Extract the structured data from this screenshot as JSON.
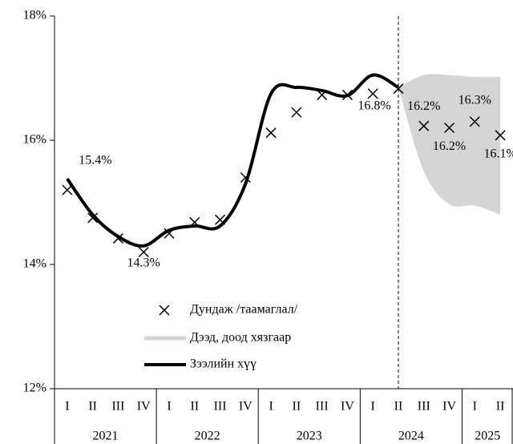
{
  "chart_data": {
    "type": "line",
    "ylim": [
      12,
      18
    ],
    "yticks": [
      {
        "value": 12,
        "label": "12%"
      },
      {
        "value": 14,
        "label": "14%"
      },
      {
        "value": 16,
        "label": "16%"
      },
      {
        "value": 18,
        "label": "18%"
      }
    ],
    "year_groups": [
      {
        "year": "2021",
        "quarters": [
          "I",
          "II",
          "III",
          "IV"
        ]
      },
      {
        "year": "2022",
        "quarters": [
          "I",
          "II",
          "III",
          "IV"
        ]
      },
      {
        "year": "2023",
        "quarters": [
          "I",
          "II",
          "III",
          "IV"
        ]
      },
      {
        "year": "2024",
        "quarters": [
          "I",
          "II",
          "III",
          "IV"
        ]
      },
      {
        "year": "2025",
        "quarters": [
          "I",
          "II"
        ]
      }
    ],
    "series": [
      {
        "name": "Дундаж /таамаглал/",
        "type": "scatter",
        "color": "#000000",
        "values": [
          15.2,
          14.75,
          14.42,
          14.2,
          14.5,
          14.68,
          14.72,
          15.4,
          16.12,
          16.45,
          16.73,
          16.73,
          16.75,
          16.83,
          16.23,
          16.2,
          16.3,
          16.08
        ],
        "value_labels": [
          null,
          null,
          null,
          null,
          null,
          null,
          null,
          null,
          null,
          null,
          null,
          null,
          null,
          "16.8%",
          "16.2%",
          "16.2%",
          "16.3%",
          "16.1%"
        ]
      },
      {
        "name": "Дээд, доод хязгаар",
        "type": "band",
        "color": "#d4d4d4",
        "upper": [
          null,
          null,
          null,
          null,
          null,
          null,
          null,
          null,
          null,
          null,
          null,
          null,
          null,
          16.85,
          17.05,
          17.05,
          17.02,
          17.02
        ],
        "lower": [
          null,
          null,
          null,
          null,
          null,
          null,
          null,
          null,
          null,
          null,
          null,
          null,
          null,
          16.85,
          15.5,
          14.97,
          14.95,
          14.8
        ]
      },
      {
        "name": "Зээлийн хүү",
        "type": "line",
        "color": "#000000",
        "values": [
          15.38,
          14.8,
          14.45,
          14.3,
          14.55,
          14.62,
          14.62,
          15.3,
          16.75,
          16.85,
          16.8,
          16.72,
          17.05,
          16.85,
          null,
          null,
          null,
          null
        ],
        "value_labels": [
          "15.4%",
          null,
          null,
          "14.3%",
          null,
          null,
          null,
          null,
          null,
          null,
          null,
          null,
          null,
          null,
          null,
          null,
          null,
          null
        ]
      }
    ]
  }
}
